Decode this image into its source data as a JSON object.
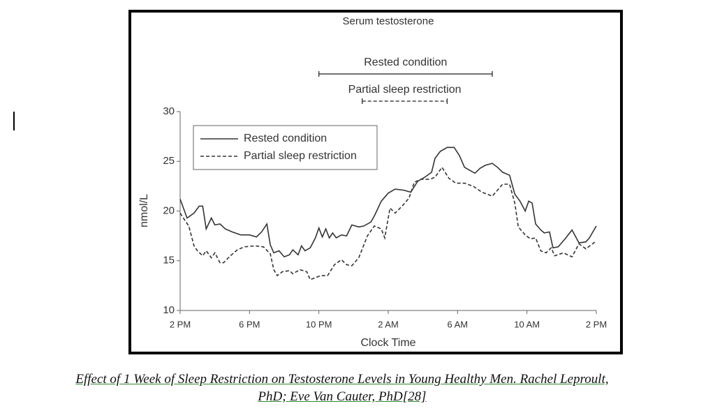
{
  "chart_data": {
    "type": "line",
    "title": "Serum testosterone",
    "x_label": "Clock Time",
    "y_label": "nmol/L",
    "xlim": [
      0,
      24
    ],
    "xticks": [
      {
        "value": 0,
        "label": "2 PM"
      },
      {
        "value": 4,
        "label": "6 PM"
      },
      {
        "value": 8,
        "label": "10 PM"
      },
      {
        "value": 12,
        "label": "2 AM"
      },
      {
        "value": 16,
        "label": "6 AM"
      },
      {
        "value": 20,
        "label": "10 AM"
      },
      {
        "value": 24,
        "label": "2 PM"
      }
    ],
    "ylim": [
      10,
      30
    ],
    "yticks": [
      10,
      15,
      20,
      25,
      30
    ],
    "legend": "upper left",
    "series": [
      {
        "name": "Rested condition",
        "color": "#333333",
        "line_style": "solid",
        "x": [
          0,
          0.4,
          0.8,
          1.1,
          1.3,
          1.5,
          1.8,
          2.0,
          2.3,
          2.6,
          3.0,
          3.5,
          4.0,
          4.4,
          4.7,
          5.0,
          5.2,
          5.4,
          5.7,
          6.0,
          6.3,
          6.5,
          6.8,
          7.0,
          7.2,
          7.5,
          7.8,
          8.0,
          8.2,
          8.4,
          8.6,
          8.8,
          9.0,
          9.3,
          9.6,
          9.9,
          10.3,
          10.6,
          11.0,
          11.2,
          11.6,
          12.0,
          12.4,
          12.9,
          13.3,
          13.7,
          14.1,
          14.5,
          14.7,
          15.0,
          15.4,
          15.8,
          16.1,
          16.4,
          16.7,
          17.0,
          17.3,
          17.6,
          18.0,
          18.3,
          18.6,
          19.0,
          19.3,
          19.6,
          19.9,
          20.1,
          20.3,
          20.5,
          20.8,
          21.0,
          21.3,
          21.5,
          21.8,
          22.2,
          22.6,
          23.0,
          23.4,
          23.6,
          24.0
        ],
        "values": [
          21.2,
          19.3,
          19.8,
          20.5,
          20.5,
          18.2,
          19.3,
          18.6,
          18.7,
          18.2,
          17.9,
          17.6,
          17.6,
          17.4,
          17.9,
          18.7,
          16.6,
          15.8,
          16.0,
          15.4,
          15.6,
          16.1,
          15.6,
          16.5,
          16.0,
          16.3,
          17.3,
          18.3,
          17.4,
          18.2,
          17.3,
          17.8,
          17.3,
          17.6,
          17.5,
          18.6,
          18.4,
          18.5,
          18.9,
          19.5,
          21.0,
          21.8,
          22.2,
          22.1,
          21.9,
          23.0,
          23.4,
          23.9,
          25.3,
          26.0,
          26.4,
          26.4,
          25.6,
          24.4,
          24.1,
          23.8,
          24.3,
          24.6,
          24.8,
          24.4,
          23.9,
          23.6,
          21.7,
          21.0,
          20.0,
          21.0,
          20.8,
          18.7,
          18.1,
          17.8,
          17.9,
          16.3,
          16.4,
          17.2,
          18.1,
          16.8,
          16.9,
          17.3,
          18.5
        ]
      },
      {
        "name": "Partial sleep restriction",
        "color": "#333333",
        "line_style": "dashed",
        "x": [
          0,
          0.3,
          0.5,
          0.8,
          1.0,
          1.3,
          1.5,
          1.8,
          2.0,
          2.3,
          2.5,
          2.9,
          3.3,
          3.7,
          4.3,
          4.8,
          5.2,
          5.4,
          5.6,
          5.9,
          6.3,
          6.5,
          6.9,
          7.3,
          7.5,
          7.8,
          8.1,
          8.5,
          8.9,
          9.3,
          9.6,
          9.9,
          10.3,
          10.8,
          11.2,
          11.6,
          11.8,
          12.1,
          12.4,
          12.8,
          13.2,
          13.5,
          13.9,
          14.4,
          14.7,
          15.1,
          15.5,
          15.9,
          16.4,
          16.9,
          17.4,
          18.0,
          18.3,
          18.6,
          19.0,
          19.3,
          19.5,
          19.9,
          20.2,
          20.5,
          20.8,
          21.1,
          21.4,
          21.6,
          22.1,
          22.6,
          23.0,
          23.4,
          24.0
        ],
        "values": [
          19.8,
          19.0,
          18.5,
          16.5,
          16.0,
          15.5,
          16.0,
          15.3,
          15.8,
          14.8,
          14.8,
          15.5,
          16.1,
          16.4,
          16.5,
          16.4,
          15.7,
          14.1,
          13.5,
          13.9,
          14.0,
          13.7,
          14.1,
          13.9,
          13.1,
          13.3,
          13.5,
          13.5,
          14.6,
          15.1,
          14.6,
          14.5,
          15.3,
          17.5,
          18.5,
          18.2,
          17.3,
          20.3,
          19.8,
          20.5,
          21.3,
          22.9,
          23.2,
          23.2,
          23.4,
          24.4,
          23.3,
          22.8,
          22.8,
          22.5,
          21.9,
          21.5,
          22.1,
          22.7,
          22.7,
          20.8,
          18.4,
          17.6,
          17.2,
          17.3,
          16.0,
          15.8,
          16.3,
          15.5,
          15.8,
          15.4,
          16.7,
          16.2,
          17.0
        ]
      }
    ],
    "annotations": [
      {
        "text": "Rested condition",
        "x": [
          8.0,
          18.0
        ],
        "line_style": "solid"
      },
      {
        "text": "Partial sleep restriction",
        "x": [
          10.5,
          15.4
        ],
        "line_style": "dashed"
      }
    ]
  },
  "caption": {
    "lines": [
      "Effect of 1 Week of Sleep Restriction on Testosterone Levels in Young Healthy Men. Rachel Leproult,",
      "PhD; Eve Van Cauter, PhD[28]"
    ]
  }
}
